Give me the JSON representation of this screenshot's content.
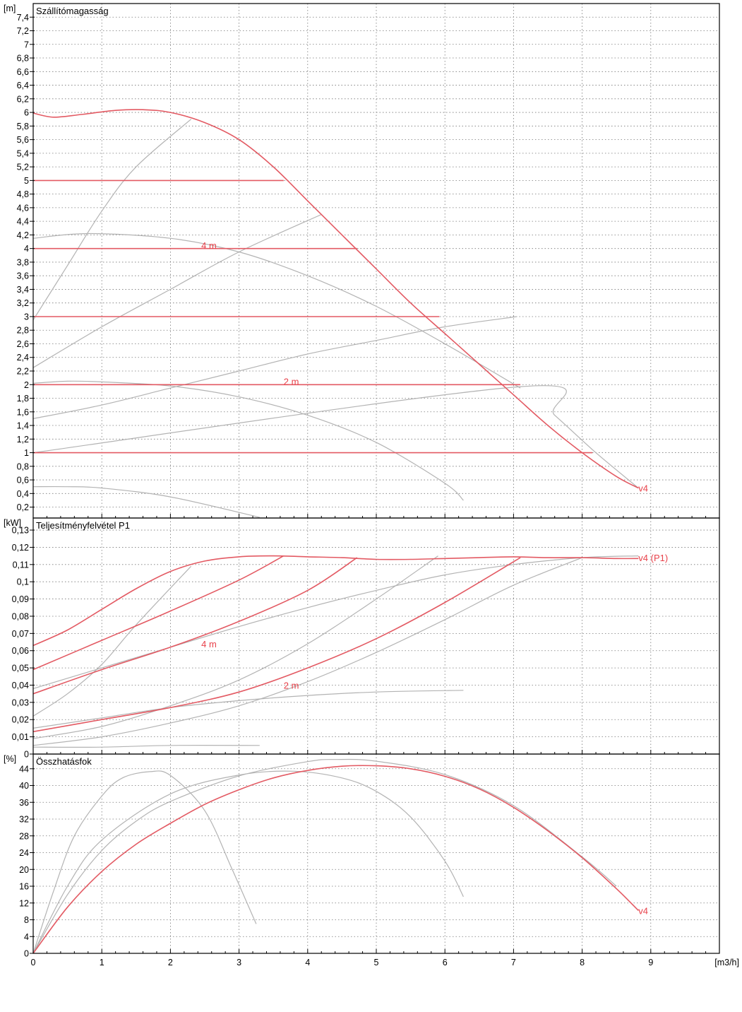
{
  "colors": {
    "operating": "#e35a63",
    "reference": "#b3b3b3",
    "grid": "#777777",
    "axis": "#000000"
  },
  "x_axis": {
    "unit": "[m3/h]",
    "range": [
      0,
      10
    ],
    "ticks": [
      0,
      1,
      2,
      3,
      4,
      5,
      6,
      7,
      8,
      9
    ]
  },
  "chart_data": [
    {
      "type": "line",
      "title": "Szállítómagasság",
      "ylabel": "[m]",
      "xlim": [
        0,
        10
      ],
      "ylim": [
        0.04,
        7.6
      ],
      "y_ticks": [
        "0,2",
        "0,4",
        "0,6",
        "0,8",
        "1",
        "1,2",
        "1,4",
        "1,6",
        "1,8",
        "2",
        "2,2",
        "2,4",
        "2,6",
        "2,8",
        "3",
        "3,2",
        "3,4",
        "3,6",
        "3,8",
        "4",
        "4,2",
        "4,4",
        "4,6",
        "4,8",
        "5",
        "5,2",
        "5,4",
        "5,6",
        "5,8",
        "6",
        "6,2",
        "6,4",
        "6,6",
        "6,8",
        "7",
        "7,2",
        "7,4"
      ],
      "grid": true,
      "annotations": [
        {
          "text": "4 m",
          "x": 2.45,
          "y": 4.05
        },
        {
          "text": "2 m",
          "x": 3.65,
          "y": 2.05
        },
        {
          "text": "v4",
          "x": 8.82,
          "y": 0.48
        }
      ],
      "series": [
        {
          "name": "v4",
          "style": "red",
          "x": [
            0,
            0.3,
            0.7,
            1.2,
            1.6,
            2.0,
            2.5,
            3.0,
            3.5,
            4.0,
            4.5,
            5.0,
            5.5,
            6.0,
            6.5,
            7.0,
            7.5,
            8.0,
            8.5,
            8.82
          ],
          "y": [
            5.99,
            5.93,
            5.97,
            6.03,
            6.04,
            6.0,
            5.85,
            5.6,
            5.2,
            4.7,
            4.2,
            3.7,
            3.2,
            2.75,
            2.3,
            1.85,
            1.4,
            1.0,
            0.65,
            0.48
          ]
        },
        {
          "style": "red",
          "x": [
            0,
            3.65
          ],
          "y": [
            5,
            5
          ]
        },
        {
          "style": "red",
          "x": [
            0,
            4.72
          ],
          "y": [
            4,
            4
          ]
        },
        {
          "style": "red",
          "x": [
            0,
            5.92
          ],
          "y": [
            3,
            3
          ]
        },
        {
          "style": "red",
          "x": [
            0,
            7.1
          ],
          "y": [
            2,
            2
          ]
        },
        {
          "style": "red",
          "x": [
            0,
            8.15
          ],
          "y": [
            1,
            1
          ]
        },
        {
          "style": "grey",
          "x": [
            0,
            7.1,
            7.6,
            8.2,
            8.82
          ],
          "y": [
            1,
            1.97,
            1.55,
            1.0,
            0.48
          ]
        },
        {
          "style": "grey",
          "x": [
            0,
            1,
            2,
            3,
            4,
            5,
            6,
            7.05
          ],
          "y": [
            1.5,
            1.7,
            1.95,
            2.2,
            2.45,
            2.65,
            2.85,
            3.0
          ]
        },
        {
          "style": "grey",
          "x": [
            0,
            1,
            2,
            3,
            4.2
          ],
          "y": [
            2.25,
            2.85,
            3.4,
            3.95,
            4.5
          ]
        },
        {
          "style": "grey",
          "x": [
            0,
            0.5,
            1,
            1.5,
            2.3
          ],
          "y": [
            2.95,
            3.75,
            4.55,
            5.2,
            5.9
          ]
        },
        {
          "style": "grey",
          "x": [
            0,
            0.8,
            2,
            3,
            4,
            5,
            6,
            7.1
          ],
          "y": [
            4.15,
            4.22,
            4.15,
            3.95,
            3.6,
            3.15,
            2.6,
            1.95
          ]
        },
        {
          "style": "grey",
          "x": [
            0,
            0.5,
            1,
            2,
            3,
            4,
            5,
            6,
            6.27
          ],
          "y": [
            2.02,
            2.05,
            2.04,
            1.98,
            1.82,
            1.55,
            1.15,
            0.55,
            0.3
          ]
        },
        {
          "style": "grey",
          "x": [
            0,
            0.5,
            1,
            2,
            3.3
          ],
          "y": [
            0.5,
            0.5,
            0.48,
            0.35,
            0.05
          ]
        }
      ]
    },
    {
      "type": "line",
      "title": "Teljesítményfelvétel P1",
      "ylabel": "[kW]",
      "xlim": [
        0,
        10
      ],
      "ylim": [
        0,
        0.137
      ],
      "y_ticks": [
        "0",
        "0,01",
        "0,02",
        "0,03",
        "0,04",
        "0,05",
        "0,06",
        "0,07",
        "0,08",
        "0,09",
        "0,1",
        "0,11",
        "0,12",
        "0,13"
      ],
      "grid": true,
      "annotations": [
        {
          "text": "4 m",
          "x": 2.45,
          "y": 0.064
        },
        {
          "text": "2 m",
          "x": 3.65,
          "y": 0.04
        },
        {
          "text": "v4 (P1)",
          "x": 8.82,
          "y": 0.114
        }
      ],
      "series": [
        {
          "name": "v4 (P1)",
          "style": "red",
          "x": [
            0,
            0.5,
            1,
            1.5,
            2,
            2.5,
            3,
            3.5,
            4,
            4.5,
            5,
            5.5,
            6,
            6.5,
            7,
            7.5,
            8,
            8.5,
            8.82
          ],
          "y": [
            0.063,
            0.072,
            0.084,
            0.096,
            0.106,
            0.112,
            0.1145,
            0.115,
            0.1145,
            0.114,
            0.113,
            0.113,
            0.1135,
            0.114,
            0.1145,
            0.114,
            0.114,
            0.1135,
            0.1135
          ]
        },
        {
          "style": "red",
          "x": [
            0,
            1,
            2,
            3,
            3.65
          ],
          "y": [
            0.049,
            0.066,
            0.083,
            0.101,
            0.115
          ]
        },
        {
          "style": "red",
          "x": [
            0,
            1,
            2,
            3,
            4,
            4.72
          ],
          "y": [
            0.035,
            0.049,
            0.062,
            0.077,
            0.095,
            0.114
          ]
        },
        {
          "style": "red",
          "x": [
            0,
            1,
            2,
            3,
            4,
            5,
            6,
            7.1
          ],
          "y": [
            0.013,
            0.02,
            0.027,
            0.036,
            0.05,
            0.067,
            0.088,
            0.114
          ]
        },
        {
          "style": "grey",
          "x": [
            0,
            1,
            2,
            3,
            4,
            5,
            6,
            7,
            8.0,
            8.82
          ],
          "y": [
            0.038,
            0.05,
            0.062,
            0.074,
            0.085,
            0.095,
            0.104,
            0.11,
            0.114,
            0.115
          ]
        },
        {
          "style": "grey",
          "x": [
            0,
            1,
            2,
            3,
            4,
            5,
            6,
            7,
            8.0
          ],
          "y": [
            0.005,
            0.01,
            0.018,
            0.028,
            0.042,
            0.059,
            0.078,
            0.098,
            0.114
          ]
        },
        {
          "style": "grey",
          "x": [
            0,
            1,
            2,
            3,
            4,
            5,
            5.9
          ],
          "y": [
            0.009,
            0.016,
            0.028,
            0.043,
            0.064,
            0.09,
            0.115
          ]
        },
        {
          "style": "grey",
          "x": [
            0,
            0.5,
            1,
            1.5,
            2.3
          ],
          "y": [
            0.022,
            0.035,
            0.052,
            0.075,
            0.109
          ]
        },
        {
          "style": "grey",
          "x": [
            0,
            1,
            2,
            3,
            4,
            5,
            6.27
          ],
          "y": [
            0.015,
            0.021,
            0.027,
            0.031,
            0.034,
            0.036,
            0.037
          ]
        },
        {
          "style": "grey",
          "x": [
            0,
            1,
            2,
            3.3
          ],
          "y": [
            0.004,
            0.004,
            0.005,
            0.005
          ]
        }
      ]
    },
    {
      "type": "line",
      "title": "Összhatásfok",
      "ylabel": "[%]",
      "xlim": [
        0,
        10
      ],
      "ylim": [
        0,
        47.5
      ],
      "y_ticks": [
        "0",
        "4",
        "8",
        "12",
        "16",
        "20",
        "24",
        "28",
        "32",
        "36",
        "40",
        "44"
      ],
      "grid": true,
      "annotations": [
        {
          "text": "v4",
          "x": 8.82,
          "y": 10.2
        }
      ],
      "series": [
        {
          "name": "v4",
          "style": "red",
          "x": [
            0,
            0.5,
            1,
            1.5,
            2,
            2.5,
            3,
            3.5,
            4,
            4.5,
            5,
            5.5,
            6,
            6.5,
            7,
            7.5,
            8,
            8.5,
            8.82
          ],
          "y": [
            0,
            11,
            19.5,
            26,
            31,
            35.5,
            39,
            41.8,
            43.6,
            44.6,
            44.7,
            44,
            42.2,
            39.2,
            34.8,
            29.2,
            22.8,
            15.4,
            10.2
          ]
        },
        {
          "style": "grey",
          "x": [
            0,
            0.5,
            1,
            1.5,
            2,
            3,
            4,
            4.4,
            5,
            6,
            7,
            8,
            8.5
          ],
          "y": [
            0,
            14,
            24.5,
            31.5,
            36.2,
            42.3,
            45.7,
            46.2,
            45.8,
            42.6,
            35.2,
            23,
            16
          ]
        },
        {
          "style": "grey",
          "x": [
            0,
            0.5,
            1,
            2,
            3,
            3.8,
            4.5,
            5,
            5.5,
            6,
            6.27
          ],
          "y": [
            0,
            16,
            27,
            38,
            42.5,
            43.4,
            41.8,
            38.6,
            32.5,
            22,
            13.5
          ]
        },
        {
          "style": "grey",
          "x": [
            0,
            0.3,
            0.6,
            1,
            1.3,
            1.7,
            2.0,
            2.5,
            2.9,
            3.25
          ],
          "y": [
            0,
            15,
            28,
            37.5,
            41.8,
            43.3,
            42.4,
            34,
            20,
            7
          ]
        }
      ]
    }
  ]
}
